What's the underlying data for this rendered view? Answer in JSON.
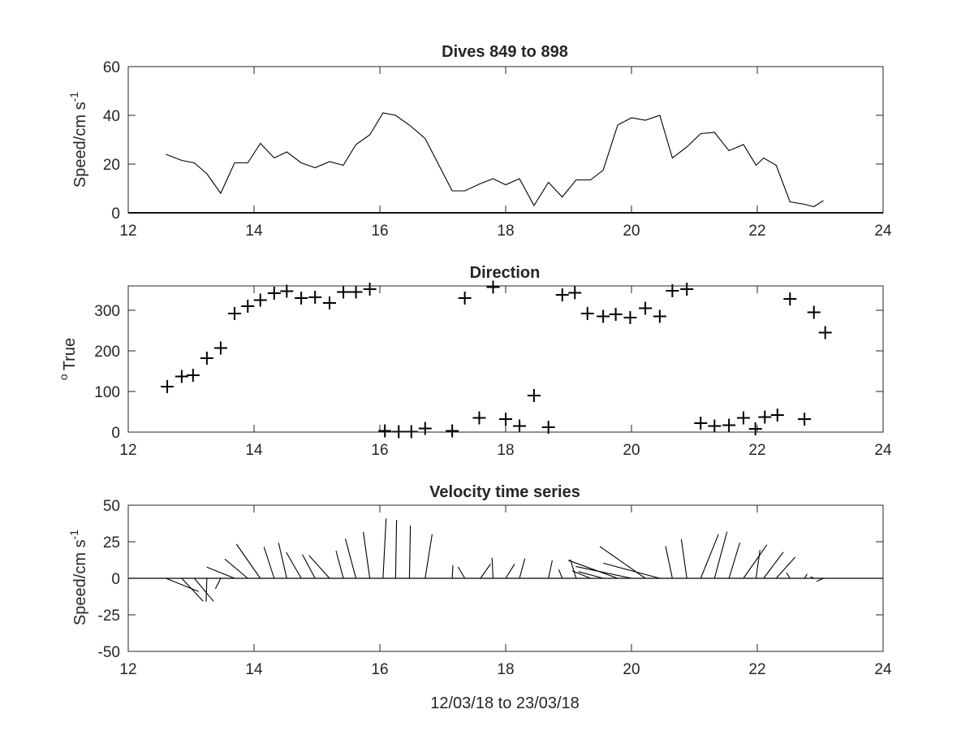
{
  "chart_data": [
    {
      "type": "line",
      "title": "Dives 849 to 898",
      "xlabel": "",
      "ylabel": "Speed/cm s",
      "ylabel_exponent": "-1",
      "xlim": [
        12,
        24
      ],
      "ylim": [
        0,
        60
      ],
      "xticks": [
        12,
        14,
        16,
        18,
        20,
        22,
        24
      ],
      "yticks": [
        0,
        20,
        40,
        60
      ],
      "grid": false,
      "color": "#000000",
      "series": [
        {
          "x": [
            12.6,
            12.85,
            13.05,
            13.25,
            13.47,
            13.69,
            13.9,
            14.1,
            14.32,
            14.52,
            14.75,
            14.97,
            15.2,
            15.42,
            15.62,
            15.84,
            16.05,
            16.25,
            16.47,
            16.72,
            17.15,
            17.35,
            17.6,
            17.8,
            18.0,
            18.22,
            18.45,
            18.68,
            18.9,
            19.12,
            19.35,
            19.55,
            19.78,
            20.0,
            20.22,
            20.45,
            20.65,
            20.88,
            21.1,
            21.32,
            21.55,
            21.78,
            21.98,
            22.1,
            22.3,
            22.52,
            22.75,
            22.9,
            23.05
          ],
          "y": [
            24,
            21.5,
            20.5,
            16,
            8,
            20.5,
            20.5,
            28.5,
            22.5,
            25,
            20.5,
            18.5,
            21,
            19.5,
            28,
            32,
            41,
            40,
            36,
            30.5,
            9,
            9,
            12,
            14,
            11.5,
            14,
            3,
            12.5,
            6.5,
            13.5,
            13.5,
            17.5,
            36,
            39,
            38,
            40,
            22.5,
            27,
            32.5,
            33,
            25.5,
            28,
            19.5,
            22.5,
            19.5,
            4.5,
            3.5,
            2.5,
            5
          ]
        }
      ]
    },
    {
      "type": "scatter",
      "title": "Direction",
      "xlabel": "",
      "ylabel": "True",
      "ylabel_superscript": "o",
      "xlim": [
        12,
        24
      ],
      "ylim": [
        0,
        360
      ],
      "xticks": [
        12,
        14,
        16,
        18,
        20,
        22,
        24
      ],
      "yticks": [
        0,
        100,
        200,
        300
      ],
      "marker": "+",
      "grid": false,
      "series": [
        {
          "x": [
            12.62,
            12.85,
            13.03,
            13.25,
            13.47,
            13.69,
            13.9,
            14.1,
            14.32,
            14.52,
            14.75,
            14.97,
            15.2,
            15.42,
            15.62,
            15.84,
            16.08,
            16.3,
            16.5,
            16.72,
            17.15,
            17.35,
            17.58,
            17.8,
            18.0,
            18.22,
            18.45,
            18.68,
            18.9,
            19.1,
            19.3,
            19.55,
            19.75,
            19.98,
            20.22,
            20.45,
            20.65,
            20.88,
            21.1,
            21.32,
            21.55,
            21.78,
            21.97,
            22.12,
            22.32,
            22.52,
            22.75,
            22.9,
            23.08
          ],
          "y": [
            112,
            137,
            140,
            182,
            207,
            292,
            310,
            325,
            342,
            347,
            330,
            332,
            318,
            345,
            345,
            352,
            3,
            1,
            1,
            9,
            3,
            330,
            35,
            357,
            32,
            15,
            90,
            12,
            338,
            343,
            292,
            285,
            290,
            282,
            305,
            285,
            348,
            352,
            22,
            15,
            17,
            35,
            8,
            37,
            42,
            328,
            32,
            295,
            245
          ]
        }
      ]
    },
    {
      "type": "line",
      "subtype": "stick-plot",
      "title": "Velocity time series",
      "xlabel": "12/03/18 to 23/03/18",
      "ylabel": "Speed/cm s",
      "ylabel_exponent": "-1",
      "xlim": [
        12,
        24
      ],
      "ylim": [
        -50,
        50
      ],
      "xticks": [
        12,
        14,
        16,
        18,
        20,
        22,
        24
      ],
      "yticks": [
        -50,
        -25,
        0,
        25,
        50
      ],
      "grid": false,
      "zero_line": true,
      "note": "each stick starts at the dive time on the zero line; stick length is speed, stick direction is direction (degrees True, north up), both axes in the same units",
      "series": [
        {
          "x": [
            12.6,
            12.85,
            13.05,
            13.25,
            13.47,
            13.69,
            13.9,
            14.1,
            14.32,
            14.52,
            14.75,
            14.97,
            15.2,
            15.42,
            15.62,
            15.84,
            16.05,
            16.25,
            16.47,
            16.72,
            17.15,
            17.35,
            17.6,
            17.8,
            18.0,
            18.22,
            18.45,
            18.68,
            18.9,
            19.12,
            19.35,
            19.55,
            19.78,
            20.0,
            20.22,
            20.45,
            20.65,
            20.88,
            21.1,
            21.32,
            21.55,
            21.78,
            21.98,
            22.1,
            22.3,
            22.52,
            22.75,
            22.9,
            23.05
          ],
          "speed": [
            24,
            21.5,
            20.5,
            16,
            8,
            20.5,
            20.5,
            28.5,
            22.5,
            25,
            20.5,
            18.5,
            21,
            19.5,
            28,
            32,
            41,
            40,
            36,
            30.5,
            9,
            9,
            12,
            14,
            11.5,
            14,
            3,
            12.5,
            6.5,
            13.5,
            13.5,
            17.5,
            36,
            39,
            38,
            40,
            22.5,
            27,
            32.5,
            33,
            25.5,
            28,
            19.5,
            22.5,
            19.5,
            4.5,
            3.5,
            2.5,
            5
          ],
          "direction": [
            112,
            137,
            140,
            182,
            207,
            292,
            310,
            325,
            342,
            347,
            330,
            332,
            318,
            345,
            345,
            352,
            3,
            1,
            1,
            9,
            3,
            330,
            35,
            357,
            32,
            15,
            90,
            12,
            338,
            343,
            292,
            285,
            290,
            282,
            305,
            285,
            348,
            352,
            22,
            15,
            17,
            35,
            8,
            37,
            42,
            328,
            32,
            295,
            245
          ]
        }
      ]
    }
  ]
}
